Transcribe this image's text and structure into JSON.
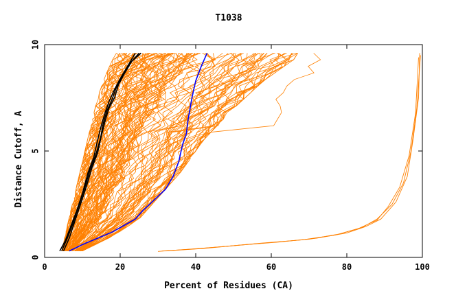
{
  "chart_data": {
    "type": "line",
    "title": "T1038",
    "xlabel": "Percent of Residues (CA)",
    "ylabel": "Distance Cutoff, A",
    "xlim": [
      0,
      100
    ],
    "ylim": [
      0,
      10
    ],
    "xticks": [
      "0",
      "20",
      "40",
      "60",
      "80",
      "100"
    ],
    "yticks": [
      "0",
      "5",
      "10"
    ],
    "grid": false,
    "legend": "none",
    "colors": {
      "orange": "#ff8000",
      "black": "#000000",
      "blue": "#0000ff"
    },
    "orange_envelope": {
      "left_edge": [
        [
          4.5,
          0.3
        ],
        [
          6,
          1.5
        ],
        [
          8,
          3
        ],
        [
          10,
          4.5
        ],
        [
          12,
          6
        ],
        [
          14,
          7.5
        ],
        [
          16,
          8.5
        ],
        [
          18,
          9.3
        ],
        [
          19,
          9.6
        ]
      ],
      "right_edge": [
        [
          10,
          0.3
        ],
        [
          18,
          1.0
        ],
        [
          25,
          1.8
        ],
        [
          30,
          2.8
        ],
        [
          36,
          4.0
        ],
        [
          42,
          5.5
        ],
        [
          50,
          7.0
        ],
        [
          58,
          8.3
        ],
        [
          66,
          9.3
        ],
        [
          67,
          9.6
        ]
      ],
      "outer_right": [
        [
          60,
          6.0
        ],
        [
          65,
          7.5
        ],
        [
          72,
          8.8
        ],
        [
          76,
          9.6
        ]
      ],
      "count": 120
    },
    "series": [
      {
        "color": "orange",
        "x": [
          31,
          40,
          50,
          60,
          70,
          78,
          84,
          88,
          92,
          95,
          97,
          98.5,
          99.5
        ],
        "y": [
          0.3,
          0.4,
          0.55,
          0.7,
          0.85,
          1.1,
          1.4,
          1.8,
          2.5,
          3.5,
          5.0,
          7.0,
          9.5
        ]
      },
      {
        "color": "orange",
        "x": [
          32,
          42,
          52,
          62,
          72,
          80,
          85,
          89,
          93,
          96,
          97.5,
          99,
          99.3
        ],
        "y": [
          0.3,
          0.42,
          0.58,
          0.72,
          0.9,
          1.15,
          1.45,
          1.8,
          2.6,
          3.8,
          5.5,
          7.5,
          9.6
        ]
      },
      {
        "color": "orange",
        "x": [
          30,
          38,
          48,
          58,
          68,
          77,
          83,
          88,
          91,
          94,
          96.5,
          98.2,
          99
        ],
        "y": [
          0.28,
          0.38,
          0.52,
          0.68,
          0.82,
          1.05,
          1.35,
          1.75,
          2.4,
          3.3,
          4.8,
          6.8,
          9.4
        ]
      },
      {
        "color": "black",
        "x": [
          4,
          5.5,
          7,
          8.5,
          10,
          11.5,
          13,
          14,
          15,
          16,
          17,
          18.5,
          20,
          22,
          24
        ],
        "y": [
          0.3,
          0.8,
          1.5,
          2.2,
          3.0,
          4.0,
          4.7,
          5.5,
          6.2,
          6.8,
          7.3,
          7.9,
          8.4,
          9.0,
          9.6
        ]
      },
      {
        "color": "black",
        "x": [
          4.5,
          6,
          7.5,
          9,
          10.5,
          12,
          13.5,
          14.8,
          15.5,
          16.5,
          17.8,
          19,
          20.5,
          22.5,
          25
        ],
        "y": [
          0.3,
          0.9,
          1.6,
          2.4,
          3.2,
          4.1,
          4.8,
          5.6,
          6.3,
          6.9,
          7.4,
          8.0,
          8.5,
          9.1,
          9.6
        ]
      },
      {
        "color": "black",
        "x": [
          5,
          6.5,
          8,
          9.5,
          11,
          12.5,
          14,
          15,
          16,
          17,
          18.5,
          19.5,
          21,
          23,
          25.5
        ],
        "y": [
          0.3,
          0.9,
          1.7,
          2.5,
          3.3,
          4.2,
          4.9,
          5.7,
          6.4,
          7.0,
          7.5,
          8.1,
          8.6,
          9.2,
          9.6
        ]
      },
      {
        "color": "blue",
        "x": [
          6.5,
          10,
          14,
          18,
          21,
          24,
          26,
          29,
          32,
          34,
          35.5,
          36.5,
          37.5,
          38,
          39,
          40,
          41.5,
          43
        ],
        "y": [
          0.3,
          0.6,
          0.9,
          1.2,
          1.5,
          1.8,
          2.2,
          2.7,
          3.2,
          3.8,
          4.5,
          5.3,
          5.8,
          6.5,
          7.5,
          8.3,
          9.0,
          9.6
        ]
      }
    ]
  }
}
